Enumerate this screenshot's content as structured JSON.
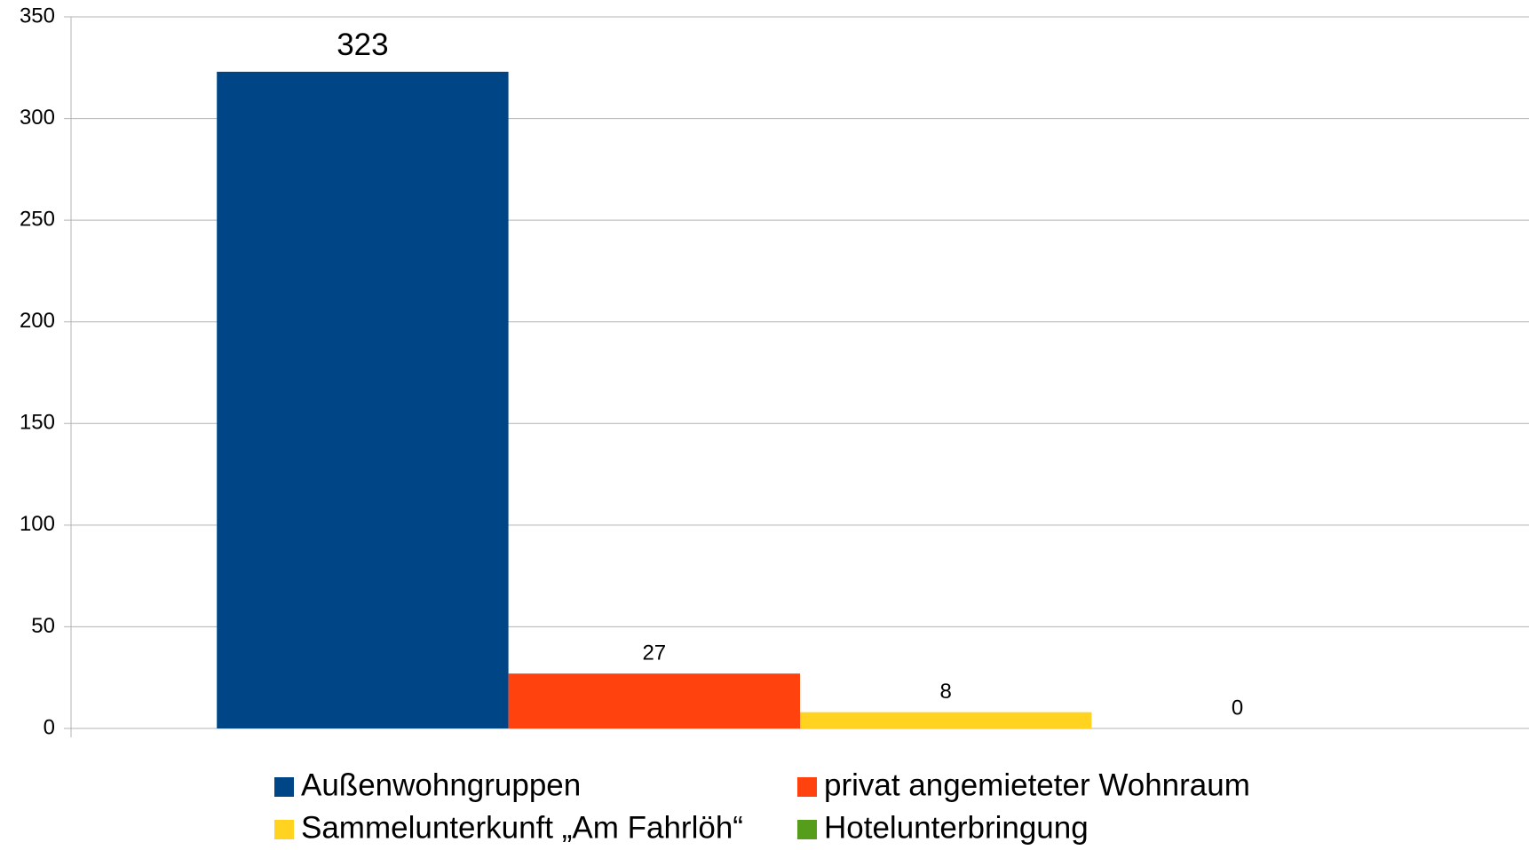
{
  "chart_data": {
    "type": "bar",
    "categories": [
      null
    ],
    "series": [
      {
        "name": "Außenwohngruppen",
        "color": "#004586",
        "values": [
          323
        ]
      },
      {
        "name": "privat angemieteter Wohnraum",
        "color": "#ff420e",
        "values": [
          27
        ]
      },
      {
        "name": "Sammelunterkunft „Am Fahrlöh“",
        "color": "#ffd320",
        "values": [
          8
        ]
      },
      {
        "name": "Hotelunterbringung",
        "color": "#579d1c",
        "values": [
          0
        ]
      }
    ],
    "ylim": [
      0,
      350
    ],
    "yticks": [
      0,
      50,
      100,
      150,
      200,
      250,
      300,
      350
    ],
    "grid": true,
    "legend": "bottom"
  }
}
